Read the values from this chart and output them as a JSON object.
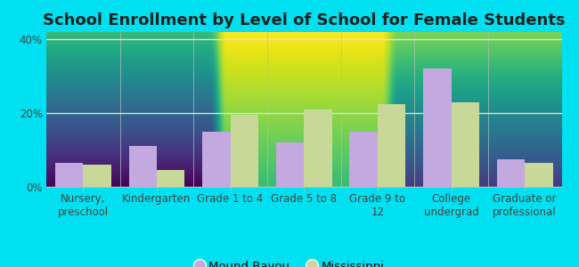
{
  "title": "School Enrollment by Level of School for Female Students",
  "categories": [
    "Nursery,\npreschool",
    "Kindergarten",
    "Grade 1 to 4",
    "Grade 5 to 8",
    "Grade 9 to\n12",
    "College\nundergrad",
    "Graduate or\nprofessional"
  ],
  "mound_bayou": [
    6.5,
    11.0,
    15.0,
    12.0,
    15.0,
    32.0,
    7.5
  ],
  "mississippi": [
    6.0,
    4.5,
    19.5,
    21.0,
    22.5,
    23.0,
    6.5
  ],
  "mound_bayou_color": "#c4a8e0",
  "mississippi_color": "#c8d898",
  "background_outer": "#00e0f0",
  "background_inner_top": "#e8f7ee",
  "background_inner_bottom": "#c8e8d0",
  "ylim": [
    0,
    42
  ],
  "yticks": [
    0,
    20,
    40
  ],
  "ytick_labels": [
    "0%",
    "20%",
    "40%"
  ],
  "legend_label_1": "Mound Bayou",
  "legend_label_2": "Mississippi",
  "bar_width": 0.38,
  "title_fontsize": 13,
  "tick_fontsize": 8.5,
  "legend_fontsize": 9.5,
  "grid_color": "#d0e8d8",
  "spine_color": "#b0c0b0",
  "text_color": "#444444"
}
